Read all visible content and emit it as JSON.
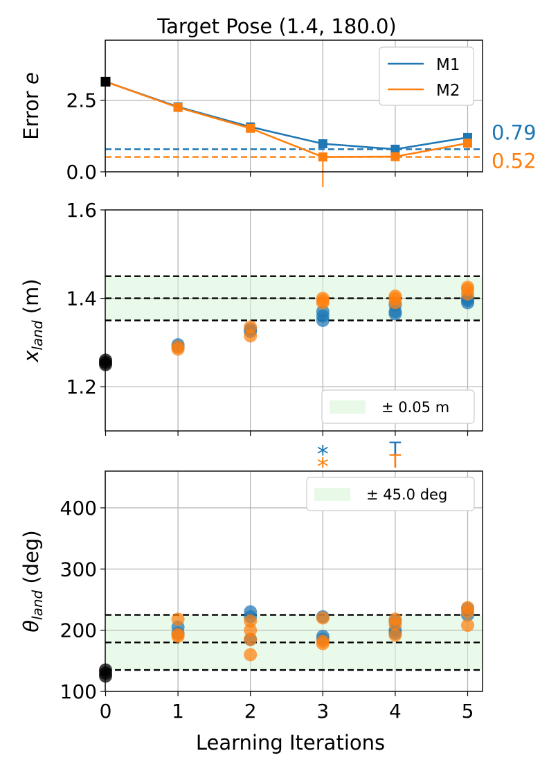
{
  "title": "Target Pose (1.4, 180.0)",
  "colors": {
    "m1": "#1f77b4",
    "m2": "#ff7f0e",
    "start": "#000000",
    "band": "#d9f5d9",
    "grid": "#b0b0b0"
  },
  "chart_data": [
    {
      "type": "line",
      "title": "Target Pose (1.4, 180.0)",
      "xlabel": "",
      "ylabel": "Error e",
      "xlim": [
        -0.15,
        5.15
      ],
      "ylim": [
        0.0,
        4.6
      ],
      "yticks": [
        0.0,
        2.5
      ],
      "ytick_labels": [
        "0.0",
        "2.5"
      ],
      "start": {
        "x": 0,
        "y": 3.15
      },
      "series": [
        {
          "name": "M1",
          "x": [
            0,
            1,
            2,
            3,
            4,
            5
          ],
          "values": [
            3.15,
            2.27,
            1.57,
            0.98,
            0.79,
            1.2
          ],
          "best": 0.79,
          "best_label": "0.79"
        },
        {
          "name": "M2",
          "x": [
            0,
            1,
            2,
            3,
            4,
            5
          ],
          "values": [
            3.15,
            2.25,
            1.52,
            0.52,
            0.53,
            1.0
          ],
          "best": 0.52,
          "best_label": "0.52"
        }
      ],
      "legend": [
        "M1",
        "M2"
      ],
      "legend_position": "top-right",
      "grid": true
    },
    {
      "type": "scatter",
      "ylabel": "x",
      "ylabel_sub": "land",
      "ylabel_unit": "(m)",
      "xlim": [
        -0.15,
        5.15
      ],
      "ylim": [
        1.1,
        1.6
      ],
      "yticks": [
        1.2,
        1.4,
        1.6
      ],
      "ytick_labels": [
        "1.2",
        "1.4",
        "1.6"
      ],
      "target": 1.4,
      "tolerance": 0.05,
      "band_label": "± 0.05 m",
      "legend_position": "bottom-right",
      "start_points": [
        1.25,
        1.26,
        1.255
      ],
      "series": [
        {
          "name": "M1",
          "points": [
            [
              1,
              1.29
            ],
            [
              1,
              1.295
            ],
            [
              2,
              1.325
            ],
            [
              2,
              1.33
            ],
            [
              3,
              1.35
            ],
            [
              3,
              1.36
            ],
            [
              3,
              1.37
            ],
            [
              4,
              1.365
            ],
            [
              4,
              1.37
            ],
            [
              4,
              1.385
            ],
            [
              5,
              1.39
            ],
            [
              5,
              1.395
            ],
            [
              5,
              1.4
            ]
          ]
        },
        {
          "name": "M2",
          "points": [
            [
              1,
              1.285
            ],
            [
              1,
              1.29
            ],
            [
              2,
              1.315
            ],
            [
              2,
              1.335
            ],
            [
              3,
              1.39
            ],
            [
              3,
              1.395
            ],
            [
              3,
              1.4
            ],
            [
              4,
              1.39
            ],
            [
              4,
              1.4
            ],
            [
              4,
              1.405
            ],
            [
              5,
              1.41
            ],
            [
              5,
              1.42
            ],
            [
              5,
              1.425
            ]
          ]
        }
      ],
      "grid": true
    },
    {
      "type": "scatter",
      "ylabel": "θ",
      "ylabel_sub": "land",
      "ylabel_unit": "(deg)",
      "xlabel": "Learning Iterations",
      "xlim": [
        -0.15,
        5.2
      ],
      "ylim": [
        100,
        460
      ],
      "yticks": [
        100,
        200,
        300,
        400
      ],
      "ytick_labels": [
        "100",
        "200",
        "300",
        "400"
      ],
      "xticks": [
        0,
        1,
        2,
        3,
        4,
        5
      ],
      "xtick_labels": [
        "0",
        "1",
        "2",
        "3",
        "4",
        "5"
      ],
      "target": 180,
      "tolerance": 45,
      "band_label": "± 45.0 deg",
      "legend_position": "top-right",
      "start_points": [
        125,
        130,
        135
      ],
      "series": [
        {
          "name": "M1",
          "points": [
            [
              1,
              195
            ],
            [
              1,
              205
            ],
            [
              2,
              185
            ],
            [
              2,
              222
            ],
            [
              2,
              230
            ],
            [
              3,
              185
            ],
            [
              3,
              190
            ],
            [
              3,
              222
            ],
            [
              4,
              195
            ],
            [
              4,
              200
            ],
            [
              4,
              215
            ],
            [
              5,
              225
            ],
            [
              5,
              235
            ]
          ]
        },
        {
          "name": "M2",
          "points": [
            [
              1,
              190
            ],
            [
              1,
              193
            ],
            [
              1,
              218
            ],
            [
              2,
              160
            ],
            [
              2,
              185
            ],
            [
              2,
              200
            ],
            [
              2,
              215
            ],
            [
              3,
              178
            ],
            [
              3,
              182
            ],
            [
              3,
              220
            ],
            [
              4,
              192
            ],
            [
              4,
              210
            ],
            [
              4,
              218
            ],
            [
              5,
              208
            ],
            [
              5,
              230
            ],
            [
              5,
              237
            ]
          ]
        }
      ],
      "grid": true
    }
  ],
  "markers": [
    {
      "series": "M1",
      "x": 3,
      "symbol": "*"
    },
    {
      "series": "M2",
      "x": 3,
      "symbol": "*"
    },
    {
      "series": "M1",
      "x": 4,
      "symbol": "T"
    },
    {
      "series": "M2",
      "x": 4,
      "symbol": "T"
    }
  ]
}
